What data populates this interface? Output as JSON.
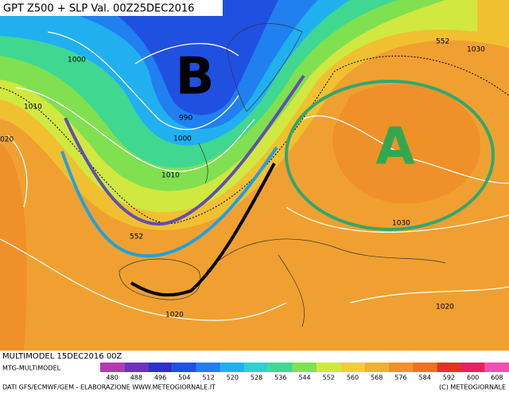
{
  "header": {
    "title": "GPT Z500 + SLP Val. 00Z25DEC2016"
  },
  "map": {
    "low_label": "B",
    "high_label": "A",
    "isobar_labels": [
      "1000",
      "1010",
      "990",
      "1000",
      "1010",
      "552",
      "1030",
      "020",
      "552",
      "1030",
      "1020",
      "1020"
    ]
  },
  "footer": {
    "run": "MULTIMODEL 15DEC2016 00Z",
    "model": "MTG-MULTIMODEL",
    "credits": "DATI GFS/ECMWF/GEM - ELABORAZIONE WWW.METEOGIORNALE.IT",
    "copyright": "(C) METEOGIORNALE"
  },
  "legend": {
    "labels": [
      480,
      488,
      496,
      504,
      512,
      520,
      528,
      536,
      544,
      552,
      560,
      568,
      576,
      584,
      592,
      600,
      608
    ],
    "colors": [
      "#b03cb0",
      "#7030c0",
      "#3030c8",
      "#2050e0",
      "#2080f0",
      "#20b0f0",
      "#30d0d0",
      "#40d890",
      "#80e050",
      "#d0e840",
      "#f0d030",
      "#f0b030",
      "#f09028",
      "#f07020",
      "#e83020",
      "#e82060",
      "#f050b0"
    ]
  }
}
